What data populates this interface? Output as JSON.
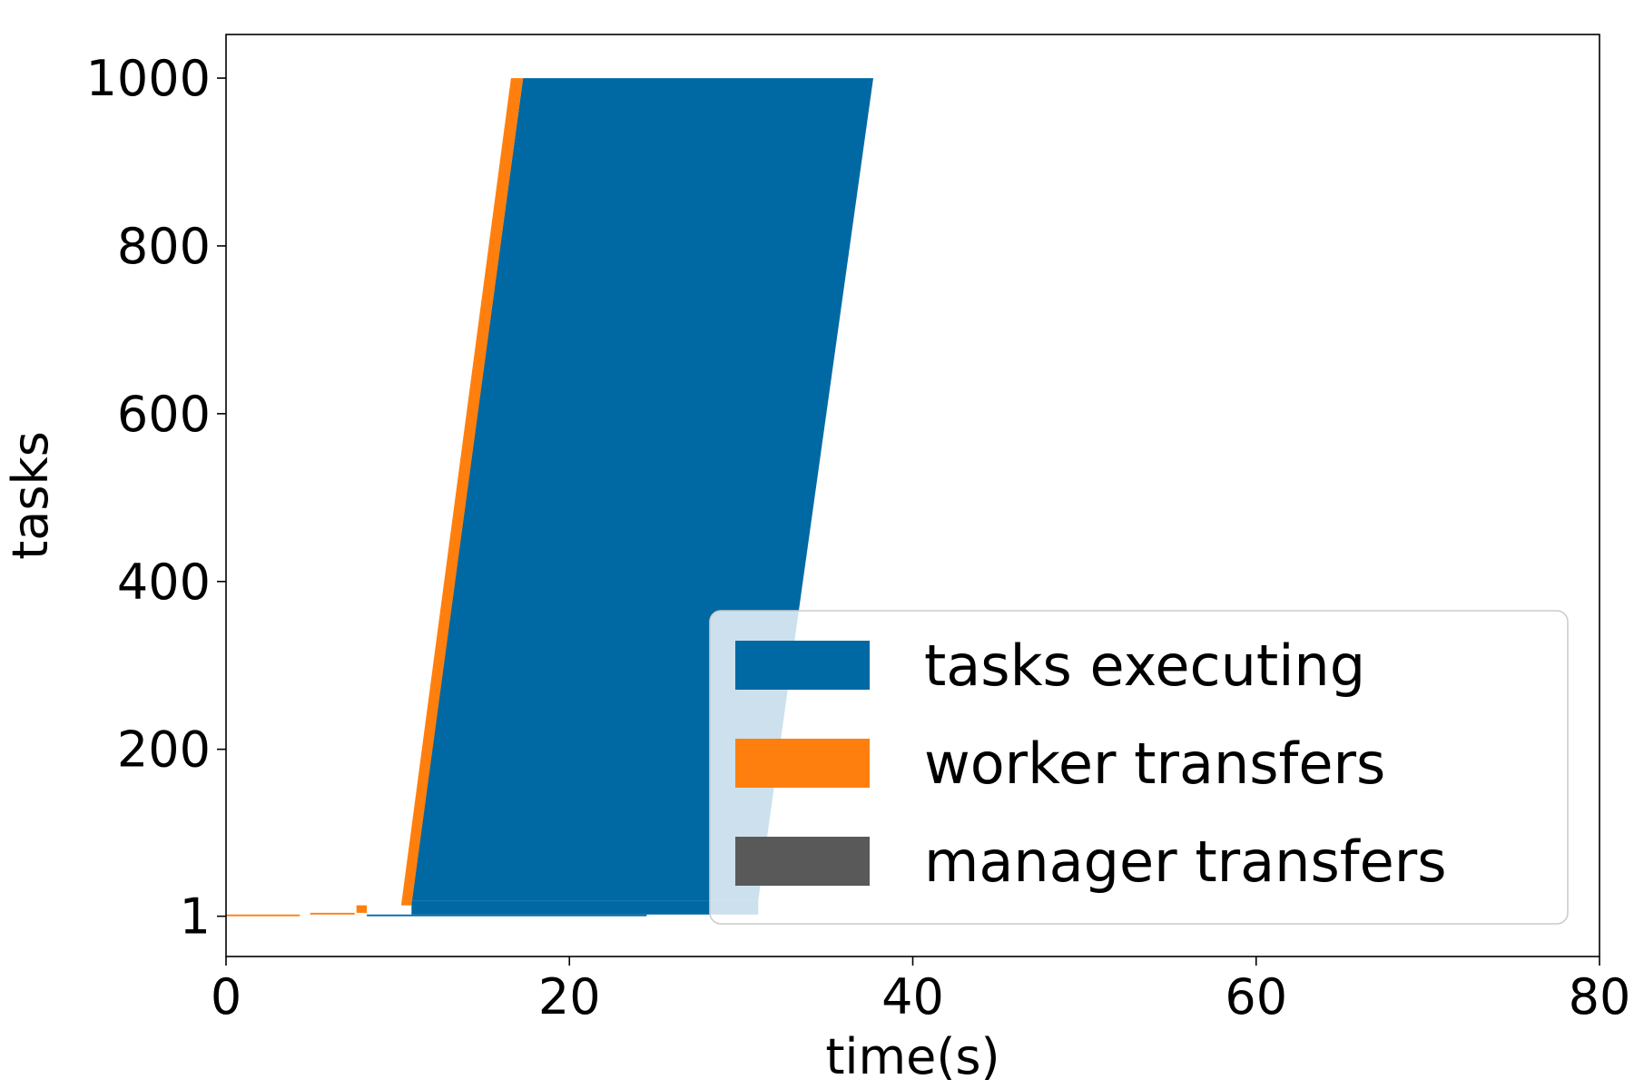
{
  "chart_data": {
    "type": "gantt",
    "title": "",
    "xlabel": "time(s)",
    "ylabel": "tasks",
    "xlim": [
      0,
      80
    ],
    "ylim": [
      -47,
      1052
    ],
    "x_ticks": [
      0,
      20,
      40,
      60,
      80
    ],
    "x_tick_labels": [
      "0",
      "20",
      "40",
      "60",
      "80"
    ],
    "y_ticks": [
      1,
      200,
      400,
      600,
      800,
      1000
    ],
    "y_tick_labels": [
      "1",
      "200",
      "400",
      "600",
      "800",
      "1000"
    ],
    "grid": false,
    "legend_position": "lower-right",
    "series": [
      {
        "name": "tasks executing",
        "color": "#0069a4",
        "bands": [
          {
            "task_start": 1,
            "task_end": 3,
            "t_start": 8.2,
            "t_end": 24.5
          },
          {
            "task_start": 3,
            "task_end": 20,
            "t_start": 10.8,
            "t_end": 31.0
          },
          {
            "task_start": 20,
            "task_end": 1000,
            "t_start_at_task_start": 10.8,
            "t_start_at_task_end": 17.3,
            "t_end_at_task_start": 31.0,
            "t_end_at_task_end": 37.7
          }
        ]
      },
      {
        "name": "worker transfers",
        "color": "#ff7f0e",
        "bands": [
          {
            "task_start": 1,
            "task_end": 3,
            "t_start": 0.0,
            "t_end": 4.3
          },
          {
            "task_start": 3,
            "task_end": 5,
            "t_start": 4.9,
            "t_end": 7.5
          },
          {
            "task_start": 5,
            "task_end": 14,
            "t_start": 7.6,
            "t_end": 8.2
          },
          {
            "task_start": 14,
            "task_end": 1000,
            "t_start_at_task_start": 10.2,
            "t_start_at_task_end": 16.6,
            "t_end_at_task_start": 10.8,
            "t_end_at_task_end": 17.3
          }
        ]
      },
      {
        "name": "manager transfers",
        "color": "#595959",
        "bands": []
      }
    ]
  }
}
